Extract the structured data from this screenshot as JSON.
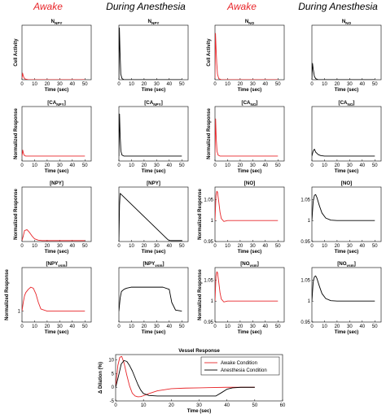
{
  "headers": [
    {
      "text": "Awake",
      "color": "#e8262a"
    },
    {
      "text": "During Anesthesia",
      "color": "#000000"
    },
    {
      "text": "Awake",
      "color": "#e8262a"
    },
    {
      "text": "During Anesthesia",
      "color": "#000000"
    }
  ],
  "colors": {
    "awake": "#e8262a",
    "anesthesia": "#000000",
    "axis": "#000000"
  },
  "chart_data": [
    {
      "id": "n-npy-awake",
      "type": "line",
      "title": "N",
      "title_sub": "NPY",
      "xlabel": "Time (sec)",
      "ylabel": "Cell Activity",
      "xlim": [
        0,
        55
      ],
      "xticks": [
        0,
        10,
        20,
        30,
        40,
        50
      ],
      "ylim": [
        0,
        1
      ],
      "yticks": [],
      "color": "awake",
      "x": [
        0,
        0.5,
        1,
        2,
        3,
        5,
        10,
        20,
        50
      ],
      "y": [
        0.02,
        0.12,
        0.07,
        0.02,
        0.01,
        0.0,
        0.0,
        0.0,
        0.0
      ]
    },
    {
      "id": "n-npy-anes",
      "type": "line",
      "title": "N",
      "title_sub": "NPY",
      "xlabel": "Time (sec)",
      "ylabel": "",
      "xlim": [
        0,
        55
      ],
      "xticks": [
        0,
        10,
        20,
        30,
        40,
        50
      ],
      "ylim": [
        0,
        1
      ],
      "yticks": [],
      "color": "anesthesia",
      "x": [
        0,
        0.4,
        0.9,
        1.5,
        2.5,
        4,
        10,
        50
      ],
      "y": [
        0.02,
        0.95,
        0.5,
        0.1,
        0.02,
        0.0,
        0.0,
        0.0
      ]
    },
    {
      "id": "n-no-awake",
      "type": "line",
      "title": "N",
      "title_sub": "NO",
      "xlabel": "Time (sec)",
      "ylabel": "Cell Activity",
      "xlim": [
        0,
        55
      ],
      "xticks": [
        0,
        10,
        20,
        30,
        40,
        50
      ],
      "ylim": [
        0,
        1
      ],
      "yticks": [],
      "color": "awake",
      "x": [
        0,
        0.4,
        0.9,
        1.4,
        2,
        3,
        5,
        10,
        50
      ],
      "y": [
        0.02,
        0.85,
        0.55,
        0.3,
        0.1,
        0.02,
        0.0,
        0.0,
        0.0
      ]
    },
    {
      "id": "n-no-anes",
      "type": "line",
      "title": "N",
      "title_sub": "NO",
      "xlabel": "Time (sec)",
      "ylabel": "",
      "xlim": [
        0,
        55
      ],
      "xticks": [
        0,
        10,
        20,
        30,
        40,
        50
      ],
      "ylim": [
        0,
        1
      ],
      "yticks": [],
      "color": "anesthesia",
      "x": [
        0,
        0.5,
        1,
        2,
        3,
        5,
        10,
        50
      ],
      "y": [
        0.02,
        0.3,
        0.2,
        0.06,
        0.02,
        0.0,
        0.0,
        0.0
      ]
    },
    {
      "id": "ca-npy-awake",
      "type": "line",
      "title": "[CA",
      "title_sub": "NPY",
      "title_end": "]",
      "xlabel": "Time (sec)",
      "ylabel": "Normalized Response",
      "xlim": [
        0,
        55
      ],
      "xticks": [
        0,
        10,
        20,
        30,
        40,
        50
      ],
      "ylim": [
        0.9,
        2.0
      ],
      "yticks": [],
      "color": "awake",
      "x": [
        0,
        0.6,
        1.2,
        2,
        3,
        5,
        10,
        50
      ],
      "y": [
        1.0,
        1.12,
        1.05,
        1.01,
        1.0,
        1.0,
        1.0,
        1.0
      ]
    },
    {
      "id": "ca-npy-anes",
      "type": "line",
      "title": "[CA",
      "title_sub": "NPY",
      "title_end": "]",
      "xlabel": "Time (sec)",
      "ylabel": "",
      "xlim": [
        0,
        55
      ],
      "xticks": [
        0,
        10,
        20,
        30,
        40,
        50
      ],
      "ylim": [
        0.9,
        2.0
      ],
      "yticks": [],
      "color": "anesthesia",
      "x": [
        0,
        0.5,
        1,
        1.6,
        2.5,
        4,
        10,
        50
      ],
      "y": [
        1.0,
        1.85,
        1.4,
        1.1,
        1.02,
        1.0,
        1.0,
        1.0
      ]
    },
    {
      "id": "ca-no-awake",
      "type": "line",
      "title": "[CA",
      "title_sub": "NO",
      "title_end": "]",
      "xlabel": "Time (sec)",
      "ylabel": "Normalized Response",
      "xlim": [
        0,
        55
      ],
      "xticks": [
        0,
        10,
        20,
        30,
        40,
        50
      ],
      "ylim": [
        0.9,
        2.0
      ],
      "yticks": [],
      "color": "awake",
      "x": [
        0,
        0.5,
        1,
        1.6,
        2.5,
        4,
        10,
        50
      ],
      "y": [
        1.0,
        1.75,
        1.35,
        1.1,
        1.02,
        1.0,
        1.0,
        1.0
      ]
    },
    {
      "id": "ca-no-anes",
      "type": "line",
      "title": "[CA",
      "title_sub": "NO",
      "title_end": "]",
      "xlabel": "Time (sec)",
      "ylabel": "",
      "xlim": [
        0,
        55
      ],
      "xticks": [
        0,
        10,
        20,
        30,
        40,
        50
      ],
      "ylim": [
        0.9,
        2.0
      ],
      "yticks": [],
      "color": "anesthesia",
      "x": [
        0,
        1,
        2,
        3,
        5,
        7,
        10,
        50
      ],
      "y": [
        1.0,
        1.1,
        1.14,
        1.08,
        1.03,
        1.01,
        1.0,
        1.0
      ]
    },
    {
      "id": "npy-awake",
      "type": "line",
      "title": "[NPY]",
      "xlabel": "Time (sec)",
      "ylabel": "Normalized Response",
      "xlim": [
        0,
        55
      ],
      "xticks": [
        0,
        10,
        20,
        30,
        40,
        50
      ],
      "ylim": [
        0,
        60
      ],
      "yticks": [],
      "color": "awake",
      "x": [
        0,
        1,
        2,
        4,
        6,
        8,
        10,
        13,
        16,
        20,
        30,
        50
      ],
      "y": [
        1,
        6,
        12,
        13,
        10,
        6,
        3,
        1.5,
        1,
        1,
        1,
        1
      ]
    },
    {
      "id": "npy-anes",
      "type": "line",
      "title": "[NPY]",
      "xlabel": "Time (sec)",
      "ylabel": "",
      "xlim": [
        0,
        55
      ],
      "xticks": [
        0,
        10,
        20,
        30,
        40,
        50
      ],
      "ylim": [
        0,
        60
      ],
      "yticks": [],
      "color": "anesthesia",
      "x": [
        0,
        0.5,
        1,
        39,
        41,
        50
      ],
      "y": [
        1,
        40,
        53,
        2,
        1,
        1
      ]
    },
    {
      "id": "no-awake",
      "type": "line",
      "title": "[NO]",
      "xlabel": "Time (sec)",
      "ylabel": "Normalized Response",
      "xlim": [
        0,
        55
      ],
      "xticks": [
        0,
        10,
        20,
        30,
        40,
        50
      ],
      "ylim": [
        0.95,
        1.08
      ],
      "yticks": [
        0.95,
        1,
        1.05
      ],
      "color": "awake",
      "x": [
        0,
        0.8,
        1.5,
        2,
        3,
        4,
        5,
        7,
        10,
        50
      ],
      "y": [
        1.0,
        1.06,
        1.07,
        1.068,
        1.045,
        1.02,
        1.005,
        0.998,
        1.0,
        1.0
      ]
    },
    {
      "id": "no-anes",
      "type": "line",
      "title": "[NO]",
      "xlabel": "Time (sec)",
      "ylabel": "",
      "xlim": [
        0,
        55
      ],
      "xticks": [
        0,
        10,
        20,
        30,
        40,
        50
      ],
      "ylim": [
        0.95,
        1.08
      ],
      "yticks": [
        0.95,
        1,
        1.05
      ],
      "color": "anesthesia",
      "x": [
        0,
        1,
        2,
        3,
        4,
        6,
        8,
        11,
        15,
        20,
        50
      ],
      "y": [
        1.0,
        1.045,
        1.06,
        1.062,
        1.055,
        1.035,
        1.018,
        1.006,
        1.001,
        1.0,
        1.0
      ]
    },
    {
      "id": "npy-vsm-awake",
      "type": "line",
      "title": "[NPY",
      "title_sub": "vsm",
      "title_end": "]",
      "xlabel": "Time (sec)",
      "ylabel": "Normalized Response",
      "xlim": [
        0,
        55
      ],
      "xticks": [
        0,
        10,
        20,
        30,
        40,
        50
      ],
      "ylim": [
        0.95,
        1.2
      ],
      "yticks": [
        1
      ],
      "color": "awake",
      "x": [
        0,
        1,
        2,
        3,
        5,
        7,
        9,
        11,
        13,
        15,
        20,
        50
      ],
      "y": [
        1.0,
        1.04,
        1.07,
        1.085,
        1.1,
        1.11,
        1.105,
        1.08,
        1.04,
        1.01,
        1.0,
        1.0
      ]
    },
    {
      "id": "npy-vsm-anes",
      "type": "line",
      "title": "[NPY",
      "title_sub": "vsm",
      "title_end": "]",
      "xlabel": "Time (sec)",
      "ylabel": "",
      "xlim": [
        0,
        55
      ],
      "xticks": [
        0,
        10,
        20,
        30,
        40,
        50
      ],
      "ylim": [
        0.95,
        1.2
      ],
      "yticks": [],
      "color": "anesthesia",
      "x": [
        0,
        1,
        2,
        4,
        6,
        10,
        20,
        35,
        40,
        42,
        45,
        50
      ],
      "y": [
        1.0,
        1.06,
        1.09,
        1.1,
        1.105,
        1.11,
        1.11,
        1.11,
        1.1,
        1.04,
        1.005,
        1.0
      ]
    },
    {
      "id": "no-vsm-awake",
      "type": "line",
      "title": "[NO",
      "title_sub": "vsm",
      "title_end": "]",
      "xlabel": "Time (sec)",
      "ylabel": "Normalized Response",
      "xlim": [
        0,
        55
      ],
      "xticks": [
        0,
        10,
        20,
        30,
        40,
        50
      ],
      "ylim": [
        0.95,
        1.08
      ],
      "yticks": [
        0.95,
        1,
        1.05
      ],
      "color": "awake",
      "x": [
        0,
        0.8,
        1.5,
        2,
        3,
        4,
        5,
        7,
        10,
        50
      ],
      "y": [
        1.0,
        1.06,
        1.07,
        1.068,
        1.045,
        1.02,
        1.005,
        0.998,
        1.0,
        1.0
      ]
    },
    {
      "id": "no-vsm-anes",
      "type": "line",
      "title": "[NO",
      "title_sub": "vsm",
      "title_end": "]",
      "xlabel": "Time (sec)",
      "ylabel": "",
      "xlim": [
        0,
        55
      ],
      "xticks": [
        0,
        10,
        20,
        30,
        40,
        50
      ],
      "ylim": [
        0.95,
        1.08
      ],
      "yticks": [
        0.95,
        1,
        1.05
      ],
      "color": "anesthesia",
      "x": [
        0,
        1,
        2,
        3,
        4,
        6,
        8,
        11,
        15,
        20,
        50
      ],
      "y": [
        1.0,
        1.045,
        1.058,
        1.06,
        1.054,
        1.035,
        1.018,
        1.006,
        1.001,
        1.0,
        1.0
      ]
    },
    {
      "id": "vessel",
      "type": "line",
      "title": "Vessel Response",
      "xlabel": "Time (sec)",
      "ylabel": "Δ Dilation (%)",
      "xlim": [
        0,
        60
      ],
      "xticks": [
        0,
        10,
        20,
        30,
        40,
        50,
        60
      ],
      "ylim": [
        -5,
        12
      ],
      "yticks": [
        -5,
        0,
        5,
        10
      ],
      "legend": {
        "position": "top-right",
        "entries": [
          {
            "label": "Awake Condition",
            "color": "awake"
          },
          {
            "label": "Anesthesia Condition",
            "color": "anesthesia"
          }
        ]
      },
      "series": [
        {
          "name": "Awake Condition",
          "color": "awake",
          "x": [
            0,
            0.8,
            1.5,
            2.2,
            3,
            4,
            5,
            6,
            7,
            8,
            9,
            10,
            12,
            15,
            20,
            25,
            30,
            40,
            50
          ],
          "y": [
            0,
            8,
            11,
            11.3,
            9,
            4.5,
            0.5,
            -2.2,
            -3.2,
            -3.5,
            -3.4,
            -3.1,
            -2.3,
            -1.3,
            -0.5,
            -0.3,
            -0.2,
            0,
            0
          ]
        },
        {
          "name": "Anesthesia Condition",
          "color": "anesthesia",
          "x": [
            0,
            1,
            2,
            3,
            4,
            5,
            6,
            7,
            8,
            9,
            10,
            12,
            15,
            20,
            30,
            36,
            38,
            40,
            42,
            45,
            50
          ],
          "y": [
            0,
            4,
            8.5,
            9.8,
            9.5,
            8,
            6,
            3.5,
            1,
            -1,
            -2.3,
            -3,
            -3.2,
            -3.2,
            -3.2,
            -3.2,
            -2,
            -0.7,
            -0.2,
            0,
            0
          ]
        }
      ]
    }
  ]
}
